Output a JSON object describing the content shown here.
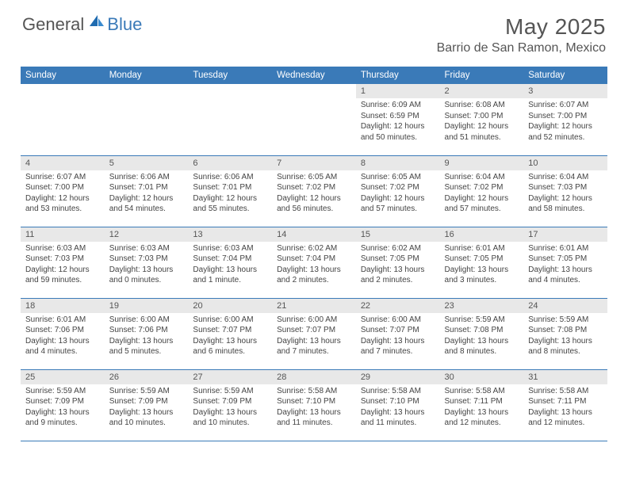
{
  "logo": {
    "text1": "General",
    "text2": "Blue"
  },
  "title": "May 2025",
  "location": "Barrio de San Ramon, Mexico",
  "colors": {
    "header_bg": "#3a7ab8",
    "header_fg": "#ffffff",
    "daynum_bg": "#e8e8e8",
    "text": "#555555",
    "border": "#3a7ab8"
  },
  "weekdays": [
    "Sunday",
    "Monday",
    "Tuesday",
    "Wednesday",
    "Thursday",
    "Friday",
    "Saturday"
  ],
  "weeks": [
    [
      null,
      null,
      null,
      null,
      {
        "n": "1",
        "sr": "6:09 AM",
        "ss": "6:59 PM",
        "dl": "12 hours and 50 minutes."
      },
      {
        "n": "2",
        "sr": "6:08 AM",
        "ss": "7:00 PM",
        "dl": "12 hours and 51 minutes."
      },
      {
        "n": "3",
        "sr": "6:07 AM",
        "ss": "7:00 PM",
        "dl": "12 hours and 52 minutes."
      }
    ],
    [
      {
        "n": "4",
        "sr": "6:07 AM",
        "ss": "7:00 PM",
        "dl": "12 hours and 53 minutes."
      },
      {
        "n": "5",
        "sr": "6:06 AM",
        "ss": "7:01 PM",
        "dl": "12 hours and 54 minutes."
      },
      {
        "n": "6",
        "sr": "6:06 AM",
        "ss": "7:01 PM",
        "dl": "12 hours and 55 minutes."
      },
      {
        "n": "7",
        "sr": "6:05 AM",
        "ss": "7:02 PM",
        "dl": "12 hours and 56 minutes."
      },
      {
        "n": "8",
        "sr": "6:05 AM",
        "ss": "7:02 PM",
        "dl": "12 hours and 57 minutes."
      },
      {
        "n": "9",
        "sr": "6:04 AM",
        "ss": "7:02 PM",
        "dl": "12 hours and 57 minutes."
      },
      {
        "n": "10",
        "sr": "6:04 AM",
        "ss": "7:03 PM",
        "dl": "12 hours and 58 minutes."
      }
    ],
    [
      {
        "n": "11",
        "sr": "6:03 AM",
        "ss": "7:03 PM",
        "dl": "12 hours and 59 minutes."
      },
      {
        "n": "12",
        "sr": "6:03 AM",
        "ss": "7:03 PM",
        "dl": "13 hours and 0 minutes."
      },
      {
        "n": "13",
        "sr": "6:03 AM",
        "ss": "7:04 PM",
        "dl": "13 hours and 1 minute."
      },
      {
        "n": "14",
        "sr": "6:02 AM",
        "ss": "7:04 PM",
        "dl": "13 hours and 2 minutes."
      },
      {
        "n": "15",
        "sr": "6:02 AM",
        "ss": "7:05 PM",
        "dl": "13 hours and 2 minutes."
      },
      {
        "n": "16",
        "sr": "6:01 AM",
        "ss": "7:05 PM",
        "dl": "13 hours and 3 minutes."
      },
      {
        "n": "17",
        "sr": "6:01 AM",
        "ss": "7:05 PM",
        "dl": "13 hours and 4 minutes."
      }
    ],
    [
      {
        "n": "18",
        "sr": "6:01 AM",
        "ss": "7:06 PM",
        "dl": "13 hours and 4 minutes."
      },
      {
        "n": "19",
        "sr": "6:00 AM",
        "ss": "7:06 PM",
        "dl": "13 hours and 5 minutes."
      },
      {
        "n": "20",
        "sr": "6:00 AM",
        "ss": "7:07 PM",
        "dl": "13 hours and 6 minutes."
      },
      {
        "n": "21",
        "sr": "6:00 AM",
        "ss": "7:07 PM",
        "dl": "13 hours and 7 minutes."
      },
      {
        "n": "22",
        "sr": "6:00 AM",
        "ss": "7:07 PM",
        "dl": "13 hours and 7 minutes."
      },
      {
        "n": "23",
        "sr": "5:59 AM",
        "ss": "7:08 PM",
        "dl": "13 hours and 8 minutes."
      },
      {
        "n": "24",
        "sr": "5:59 AM",
        "ss": "7:08 PM",
        "dl": "13 hours and 8 minutes."
      }
    ],
    [
      {
        "n": "25",
        "sr": "5:59 AM",
        "ss": "7:09 PM",
        "dl": "13 hours and 9 minutes."
      },
      {
        "n": "26",
        "sr": "5:59 AM",
        "ss": "7:09 PM",
        "dl": "13 hours and 10 minutes."
      },
      {
        "n": "27",
        "sr": "5:59 AM",
        "ss": "7:09 PM",
        "dl": "13 hours and 10 minutes."
      },
      {
        "n": "28",
        "sr": "5:58 AM",
        "ss": "7:10 PM",
        "dl": "13 hours and 11 minutes."
      },
      {
        "n": "29",
        "sr": "5:58 AM",
        "ss": "7:10 PM",
        "dl": "13 hours and 11 minutes."
      },
      {
        "n": "30",
        "sr": "5:58 AM",
        "ss": "7:11 PM",
        "dl": "13 hours and 12 minutes."
      },
      {
        "n": "31",
        "sr": "5:58 AM",
        "ss": "7:11 PM",
        "dl": "13 hours and 12 minutes."
      }
    ]
  ],
  "labels": {
    "sunrise": "Sunrise:",
    "sunset": "Sunset:",
    "daylight": "Daylight:"
  }
}
